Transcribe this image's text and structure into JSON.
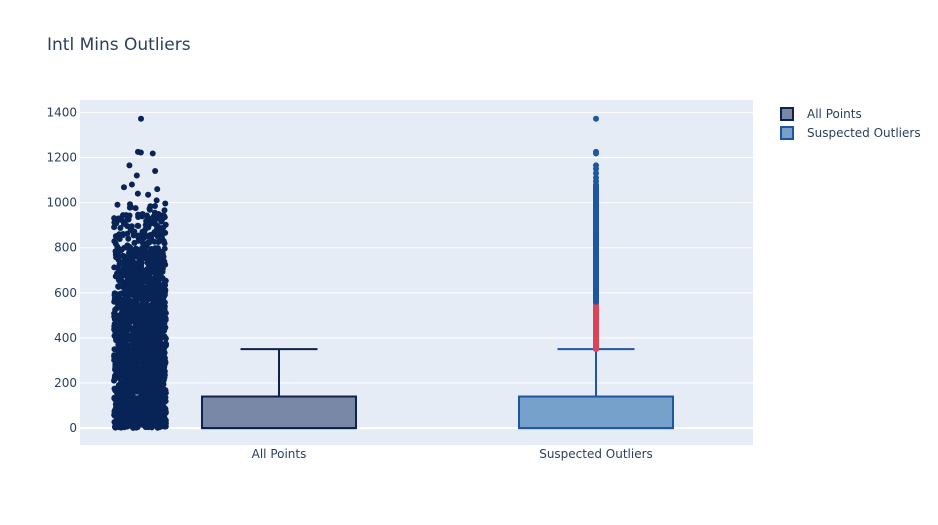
{
  "chart_data": {
    "type": "box",
    "title": "Intl Mins Outliers",
    "xlabel": "",
    "ylabel": "",
    "ylim": [
      -75,
      1455
    ],
    "yticks": [
      0,
      200,
      400,
      600,
      800,
      1000,
      1200,
      1400
    ],
    "grid": true,
    "legend_placement": "top-right",
    "categories": [
      "All Points",
      "Suspected Outliers"
    ],
    "series": [
      {
        "name": "All Points",
        "boxpoints": "all",
        "min": 0,
        "q1": 0,
        "median": 0,
        "q3": 140,
        "upper_fence": 350,
        "max": 1372,
        "fill_color": "#7888a5",
        "line_color": "#0c2350",
        "point_color": "#082456",
        "notable_points": [
          1372,
          1225,
          1222,
          1218,
          1165,
          1140,
          1120,
          1080,
          1068,
          1060,
          1040,
          1035,
          1010,
          985,
          968
        ]
      },
      {
        "name": "Suspected Outliers",
        "boxpoints": "suspectedoutliers",
        "min": 0,
        "q1": 0,
        "median": 0,
        "q3": 140,
        "upper_fence": 350,
        "max": 1372,
        "fill_color": "#76a1cb",
        "line_color": "#1f56a0",
        "outlier_color": "#1e56a0",
        "suspected_outlier_color": "#db4458",
        "suspected_outlier_range": [
          350,
          560
        ],
        "outlier_range": [
          560,
          1080
        ],
        "notable_points": [
          1372,
          1225,
          1218,
          1165,
          1150,
          1130,
          1110,
          1095
        ]
      }
    ]
  }
}
